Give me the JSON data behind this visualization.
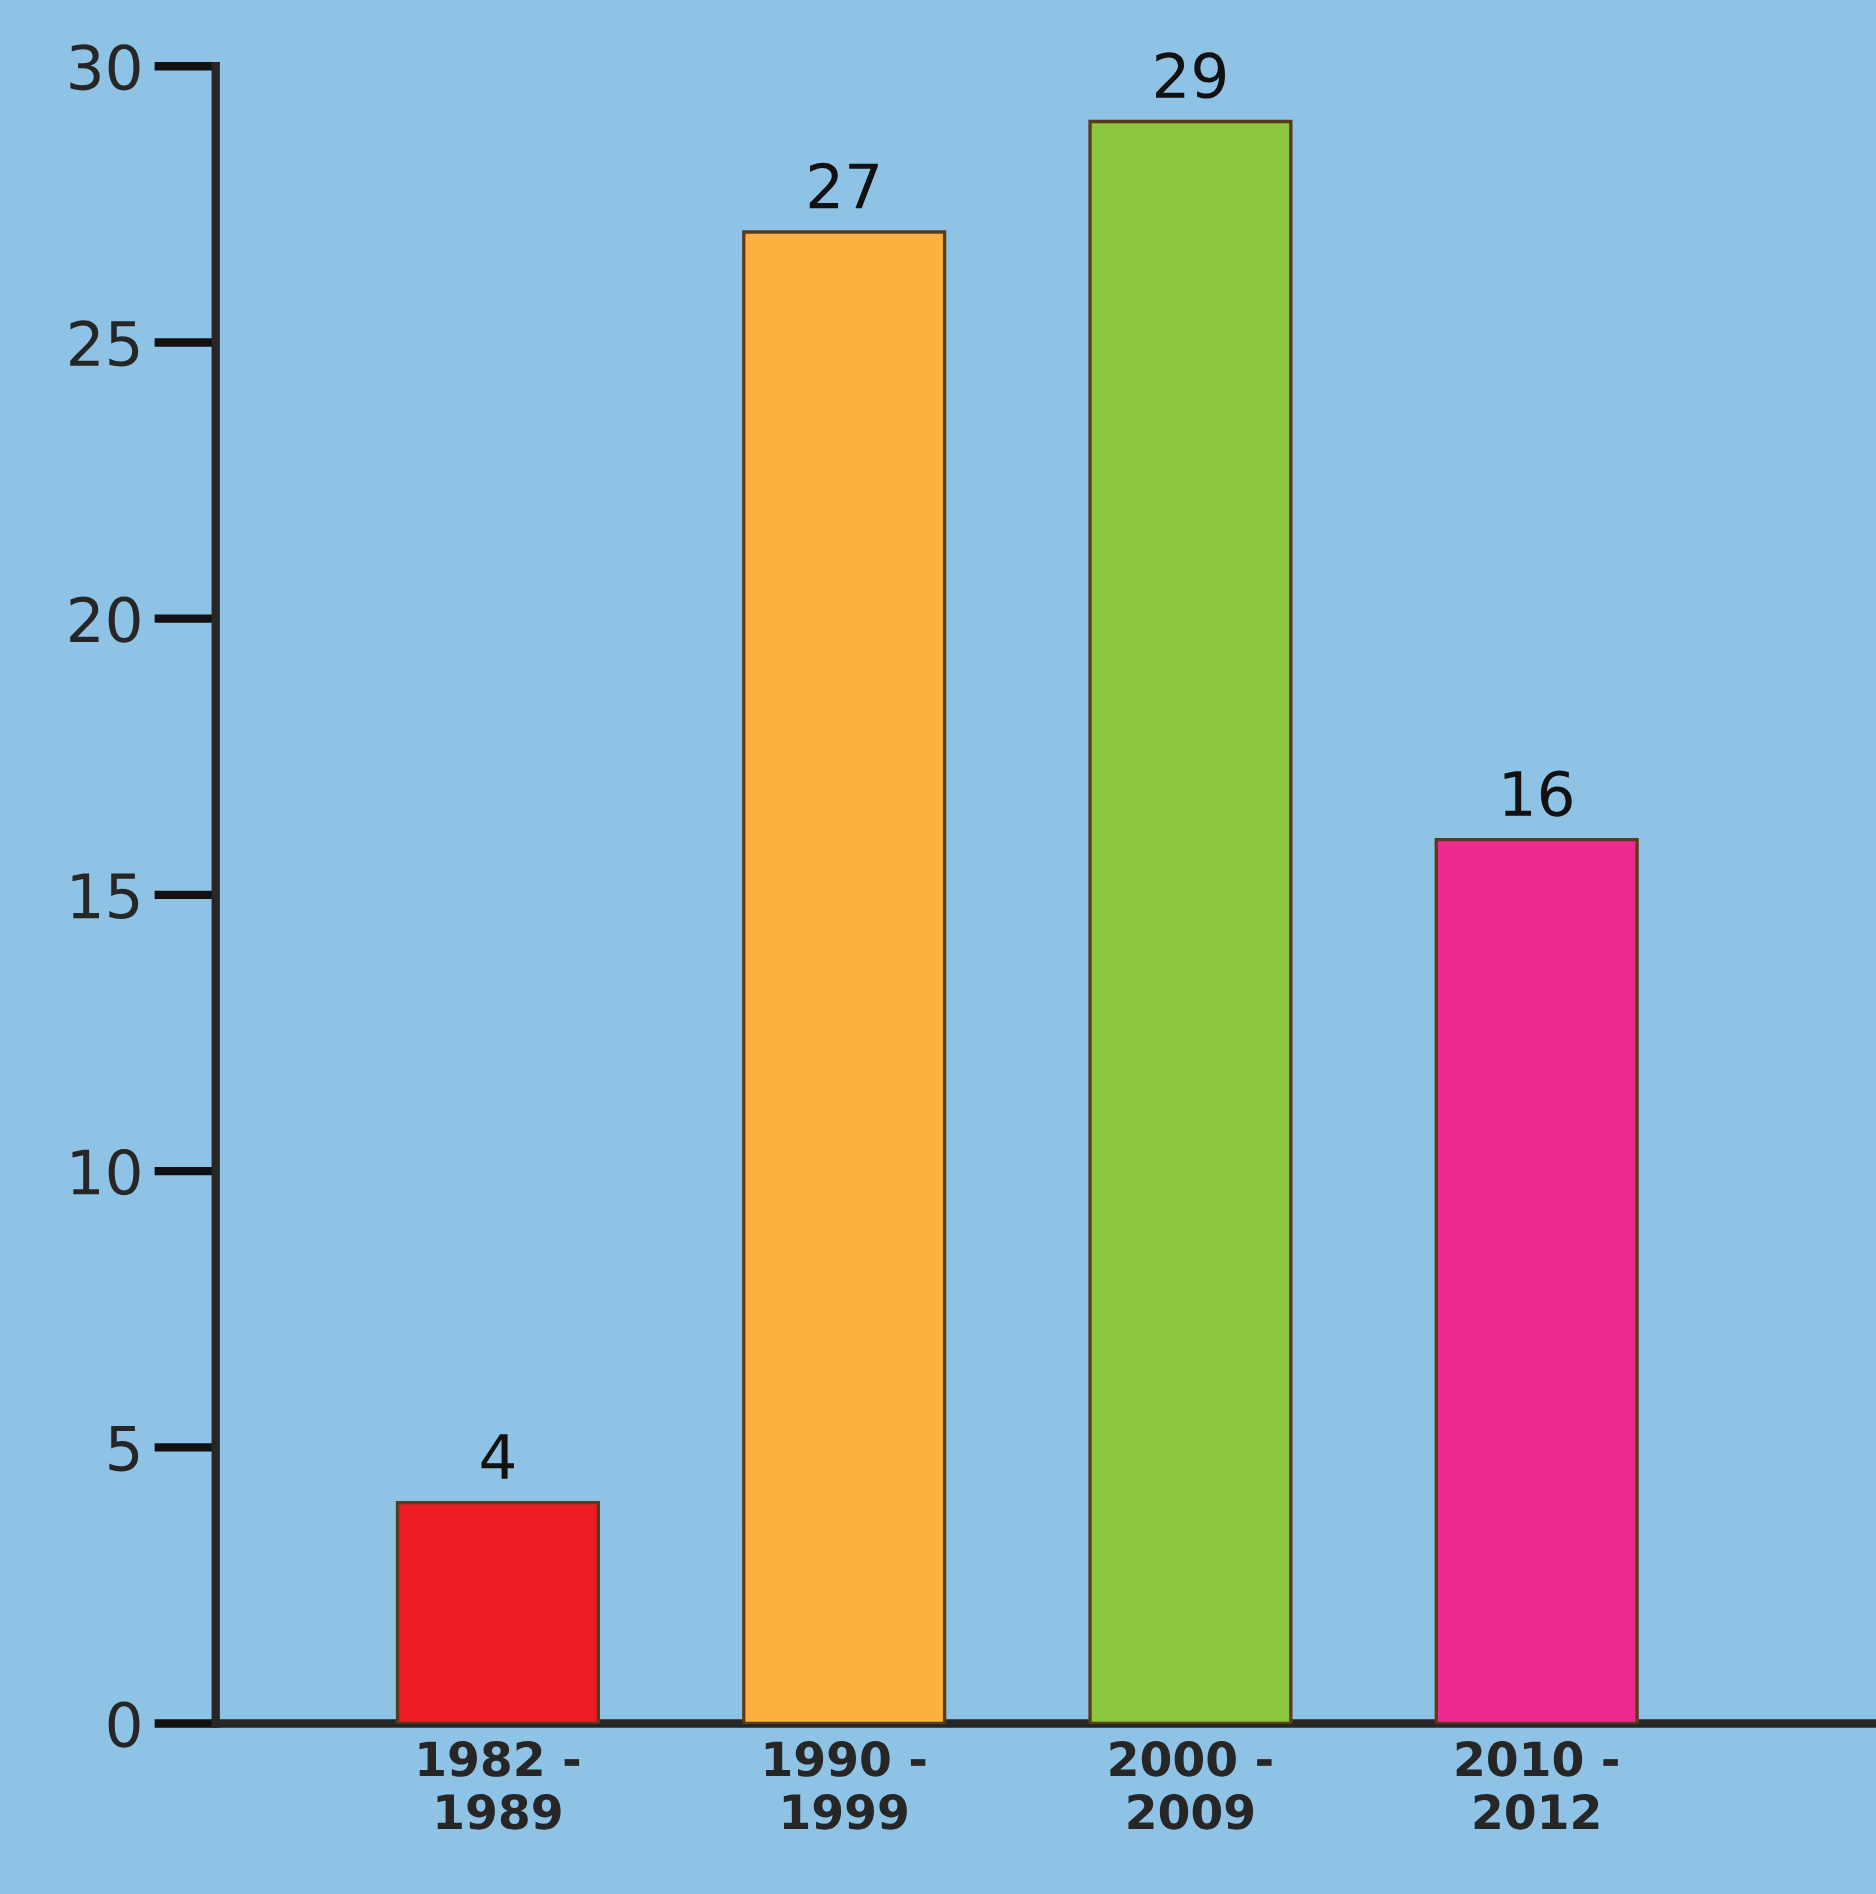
{
  "chart_data": {
    "type": "bar",
    "categories": [
      "1982 -\n1989",
      "1990 -\n1999",
      "2000 -\n2009",
      "2010 -\n2012"
    ],
    "values": [
      4,
      27,
      29,
      16
    ],
    "colors": [
      "#ed1c24",
      "#fbb040",
      "#8dc63f",
      "#ec2a8f"
    ],
    "ylim": [
      0,
      30
    ],
    "yticks": [
      0,
      5,
      10,
      15,
      20,
      25,
      30
    ],
    "data_labels": true,
    "grid": false,
    "legend": false
  }
}
